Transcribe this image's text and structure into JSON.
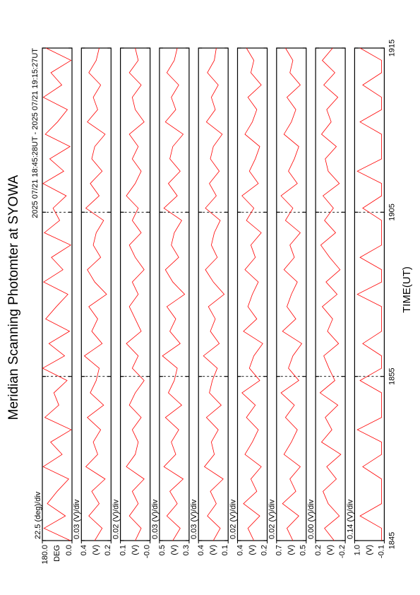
{
  "chart_data": {
    "type": "line",
    "title": "Meridian Scanning Photomter at SYOWA",
    "subtitle": "2025 07/21 18:45:28UT - 2025 07/21 19:15:27UT",
    "xlabel": "TIME(UT)",
    "xlim": [
      0,
      30
    ],
    "xticks": [
      {
        "value": 0,
        "label": "1845"
      },
      {
        "value": 10,
        "label": "1855"
      },
      {
        "value": 20,
        "label": "1905"
      },
      {
        "value": 30,
        "label": "1915"
      }
    ],
    "grid": true,
    "x": [
      0,
      0.75,
      1.5,
      2.25,
      3,
      3.75,
      4.5,
      5.25,
      6,
      6.75,
      7.5,
      8.25,
      9,
      9.75,
      10.5,
      11.25,
      12,
      12.75,
      13.5,
      14.25,
      15,
      15.75,
      16.5,
      17.25,
      18,
      18.75,
      19.5,
      20.25,
      21,
      21.75,
      22.5,
      23.25,
      24,
      24.75,
      25.5,
      26.25,
      27,
      27.75,
      28.5,
      29.25,
      30
    ],
    "series": [
      {
        "name": "22.5 (deg)/div",
        "unit": "DEG",
        "color": "#ff0000",
        "ylim": [
          0,
          180
        ],
        "yticks": [
          {
            "value": 0,
            "label": "0.0"
          },
          {
            "value": 180,
            "label": "180.0"
          }
        ],
        "values": [
          10,
          170,
          40,
          150,
          90,
          20,
          175,
          60,
          130,
          5,
          165,
          80,
          110,
          30,
          178,
          45,
          140,
          15,
          160,
          95,
          25,
          172,
          55,
          125,
          8,
          168,
          75,
          115,
          35,
          176,
          50,
          135,
          12,
          162,
          88,
          28,
          174,
          62,
          128,
          6,
          158
        ]
      },
      {
        "name": "0.03 (V)/div",
        "unit": "(V)",
        "color": "#ff0000",
        "ylim": [
          0.2,
          0.4
        ],
        "yticks": [
          0.2,
          0.4
        ],
        "values": [
          0.31,
          0.26,
          0.35,
          0.28,
          0.33,
          0.24,
          0.37,
          0.29,
          0.32,
          0.27,
          0.36,
          0.25,
          0.34,
          0.3,
          0.28,
          0.38,
          0.26,
          0.33,
          0.29,
          0.35,
          0.23,
          0.31,
          0.36,
          0.27,
          0.32,
          0.3,
          0.25,
          0.37,
          0.28,
          0.34,
          0.26,
          0.33,
          0.31,
          0.24,
          0.36,
          0.29,
          0.32,
          0.27,
          0.35,
          0.3,
          0.28
        ]
      },
      {
        "name": "0.02 (V)/div",
        "unit": "(V)",
        "color": "#ff0000",
        "ylim": [
          0,
          0.1
        ],
        "yticks": [
          {
            "value": 0,
            "label": "-0.0"
          },
          0.1
        ],
        "values": [
          0.05,
          0.03,
          0.07,
          0.04,
          0.06,
          0.02,
          0.08,
          0.05,
          0.04,
          0.06,
          0.03,
          0.07,
          0.05,
          0.02,
          0.06,
          0.04,
          0.08,
          0.03,
          0.05,
          0.07,
          0.04,
          0.06,
          0.02,
          0.05,
          0.07,
          0.03,
          0.06,
          0.04,
          0.08,
          0.05,
          0.03,
          0.06,
          0.04,
          0.07,
          0.02,
          0.05,
          0.06,
          0.03,
          0.07,
          0.04,
          0.05
        ]
      },
      {
        "name": "0.03 (V)/div",
        "unit": "(V)",
        "color": "#ff0000",
        "ylim": [
          0.3,
          0.5
        ],
        "yticks": [
          0.3,
          0.5
        ],
        "values": [
          0.41,
          0.36,
          0.45,
          0.38,
          0.43,
          0.34,
          0.47,
          0.39,
          0.42,
          0.37,
          0.46,
          0.35,
          0.44,
          0.4,
          0.38,
          0.48,
          0.36,
          0.43,
          0.39,
          0.45,
          0.33,
          0.41,
          0.46,
          0.37,
          0.42,
          0.4,
          0.35,
          0.47,
          0.38,
          0.44,
          0.36,
          0.43,
          0.41,
          0.34,
          0.46,
          0.39,
          0.42,
          0.37,
          0.45,
          0.4,
          0.38
        ]
      },
      {
        "name": "0.03 (V)/div",
        "unit": "(V)",
        "color": "#ff0000",
        "ylim": [
          0.1,
          0.4
        ],
        "yticks": [
          0.1,
          0.4
        ],
        "values": [
          0.25,
          0.18,
          0.31,
          0.22,
          0.28,
          0.15,
          0.34,
          0.24,
          0.27,
          0.2,
          0.32,
          0.17,
          0.29,
          0.26,
          0.21,
          0.35,
          0.19,
          0.28,
          0.23,
          0.3,
          0.14,
          0.25,
          0.33,
          0.21,
          0.27,
          0.24,
          0.18,
          0.33,
          0.22,
          0.29,
          0.19,
          0.28,
          0.25,
          0.16,
          0.32,
          0.23,
          0.27,
          0.2,
          0.31,
          0.24,
          0.22
        ]
      },
      {
        "name": "0.02 (V)/div",
        "unit": "(V)",
        "color": "#ff0000",
        "ylim": [
          0.2,
          0.4
        ],
        "yticks": [
          0.2,
          0.4
        ],
        "values": [
          0.29,
          0.33,
          0.25,
          0.36,
          0.27,
          0.31,
          0.24,
          0.35,
          0.3,
          0.26,
          0.34,
          0.28,
          0.37,
          0.25,
          0.32,
          0.29,
          0.23,
          0.36,
          0.27,
          0.33,
          0.3,
          0.26,
          0.35,
          0.28,
          0.31,
          0.24,
          0.34,
          0.29,
          0.37,
          0.26,
          0.32,
          0.28,
          0.25,
          0.35,
          0.3,
          0.27,
          0.33,
          0.24,
          0.31,
          0.29,
          0.34
        ]
      },
      {
        "name": "0.02 (V)/div",
        "unit": "(V)",
        "color": "#ff0000",
        "ylim": [
          0.5,
          0.7
        ],
        "yticks": [
          0.5,
          0.7
        ],
        "values": [
          0.59,
          0.63,
          0.55,
          0.66,
          0.57,
          0.61,
          0.54,
          0.65,
          0.6,
          0.56,
          0.64,
          0.58,
          0.67,
          0.55,
          0.62,
          0.59,
          0.53,
          0.66,
          0.57,
          0.63,
          0.6,
          0.56,
          0.65,
          0.58,
          0.61,
          0.54,
          0.64,
          0.59,
          0.67,
          0.56,
          0.62,
          0.58,
          0.55,
          0.65,
          0.6,
          0.57,
          0.63,
          0.54,
          0.61,
          0.59,
          0.64
        ]
      },
      {
        "name": "0.00 (V)/div",
        "unit": "(V)",
        "color": "#ff0000",
        "ylim": [
          -0.2,
          0.2
        ],
        "yticks": [
          -0.2,
          0.2
        ],
        "values": [
          -0.05,
          0.08,
          -0.12,
          0.03,
          0.1,
          -0.08,
          0.05,
          -0.14,
          0.12,
          -0.02,
          0.07,
          -0.1,
          0.14,
          -0.06,
          0.02,
          0.09,
          -0.11,
          0.04,
          -0.03,
          0.11,
          -0.09,
          0.06,
          -0.13,
          0.01,
          0.13,
          -0.07,
          0.08,
          -0.04,
          0.1,
          -0.12,
          0.03,
          0.07,
          -0.08,
          0.12,
          -0.01,
          0.05,
          -0.1,
          0.09,
          -0.06,
          0.11,
          -0.03
        ]
      },
      {
        "name": "0.14 (V)/div",
        "unit": "(V)",
        "color": "#ff0000",
        "ylim": [
          -0.1,
          1.0
        ],
        "yticks": [
          -0.1,
          {
            "value": 1.0,
            "label": "1.0"
          }
        ],
        "values": [
          0,
          0,
          0.8,
          0,
          0,
          0,
          0.7,
          0,
          0,
          0.9,
          0,
          0,
          0,
          0.8,
          0,
          0,
          0.7,
          0,
          0,
          0,
          0.9,
          0,
          0,
          0.8,
          0,
          0,
          0,
          0.7,
          0,
          0,
          0.9,
          0,
          0,
          0,
          0.8,
          0,
          0,
          0.7,
          0,
          0,
          0.8
        ]
      }
    ]
  }
}
